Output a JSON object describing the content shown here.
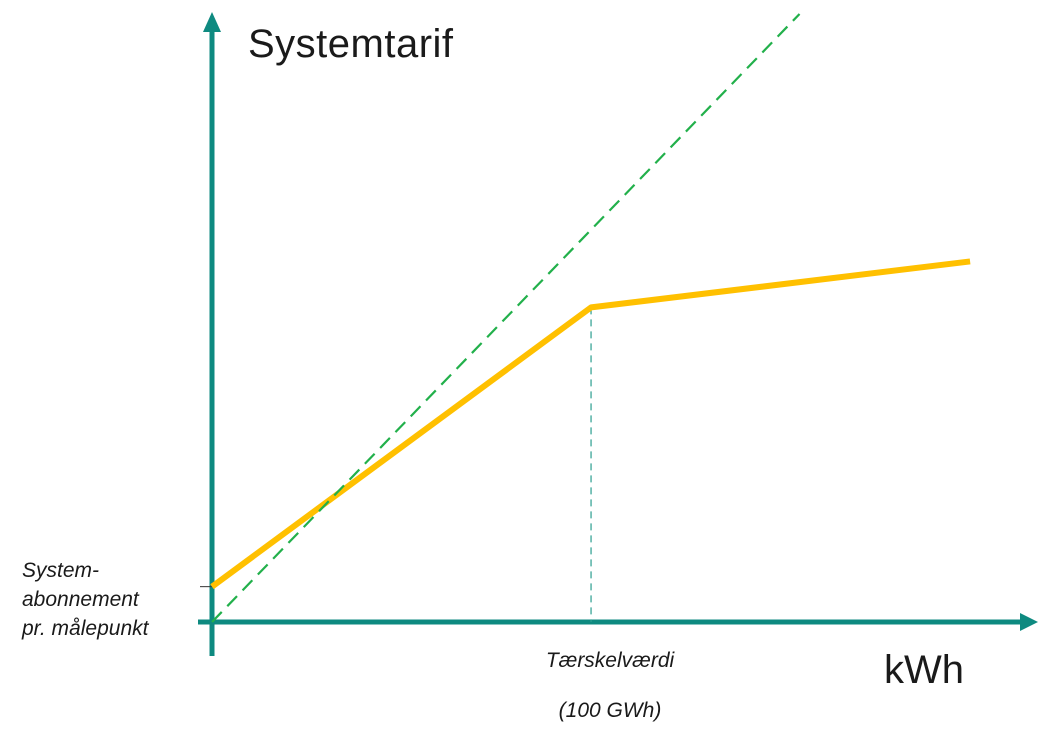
{
  "diagram": {
    "title": "Systemtarif",
    "x_unit_label": "kWh",
    "y_intercept_label_lines": [
      "System-",
      "abonnement",
      "pr. målepunkt"
    ],
    "threshold_label_lines": [
      "Tærskelværdi",
      "(100 GWh)"
    ]
  },
  "colors": {
    "axis": "#0e8a80",
    "tariff_line": "#ffc000",
    "reference_line": "#22b04b",
    "threshold_guide": "#2a9d8f"
  },
  "chart_data": {
    "type": "line",
    "title": "Systemtarif",
    "xlabel": "kWh",
    "ylabel": "",
    "series": [
      {
        "name": "",
        "style": "solid",
        "x": [
          0,
          100,
          200
        ],
        "y": [
          1,
          8.9,
          10.2
        ]
      },
      {
        "name": "",
        "style": "dashed",
        "x": [
          0,
          155
        ],
        "y": [
          0,
          17.2
        ]
      }
    ],
    "threshold": {
      "x": 100,
      "label": "Tærskelværdi (100 GWh)"
    },
    "xlim": [
      0,
      210
    ],
    "ylim": [
      0,
      17.2
    ],
    "grid": false,
    "legend": "none"
  }
}
